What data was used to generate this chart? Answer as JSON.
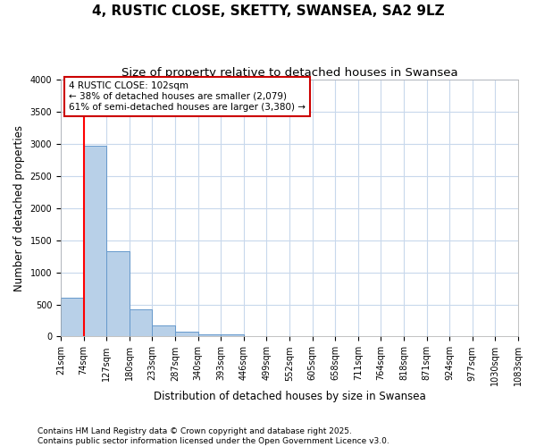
{
  "title": "4, RUSTIC CLOSE, SKETTY, SWANSEA, SA2 9LZ",
  "subtitle": "Size of property relative to detached houses in Swansea",
  "xlabel": "Distribution of detached houses by size in Swansea",
  "ylabel": "Number of detached properties",
  "bins": [
    "21sqm",
    "74sqm",
    "127sqm",
    "180sqm",
    "233sqm",
    "287sqm",
    "340sqm",
    "393sqm",
    "446sqm",
    "499sqm",
    "552sqm",
    "605sqm",
    "658sqm",
    "711sqm",
    "764sqm",
    "818sqm",
    "871sqm",
    "924sqm",
    "977sqm",
    "1030sqm",
    "1083sqm"
  ],
  "bar_values": [
    600,
    2970,
    1330,
    420,
    175,
    80,
    40,
    30,
    5,
    0,
    0,
    0,
    0,
    0,
    0,
    0,
    0,
    0,
    0,
    0
  ],
  "bar_color": "#b8d0e8",
  "bar_edge_color": "#6699cc",
  "red_line_x": 1.0,
  "annotation_text": "4 RUSTIC CLOSE: 102sqm\n← 38% of detached houses are smaller (2,079)\n61% of semi-detached houses are larger (3,380) →",
  "annotation_box_color": "#ffffff",
  "annotation_box_edge": "#cc0000",
  "ylim": [
    0,
    4000
  ],
  "yticks": [
    0,
    500,
    1000,
    1500,
    2000,
    2500,
    3000,
    3500,
    4000
  ],
  "footer": "Contains HM Land Registry data © Crown copyright and database right 2025.\nContains public sector information licensed under the Open Government Licence v3.0.",
  "bg_color": "#ffffff",
  "plot_bg_color": "#ffffff",
  "grid_color": "#c8d8ec",
  "title_fontsize": 11,
  "subtitle_fontsize": 9.5,
  "tick_fontsize": 7,
  "ylabel_fontsize": 8.5,
  "xlabel_fontsize": 8.5,
  "footer_fontsize": 6.5
}
